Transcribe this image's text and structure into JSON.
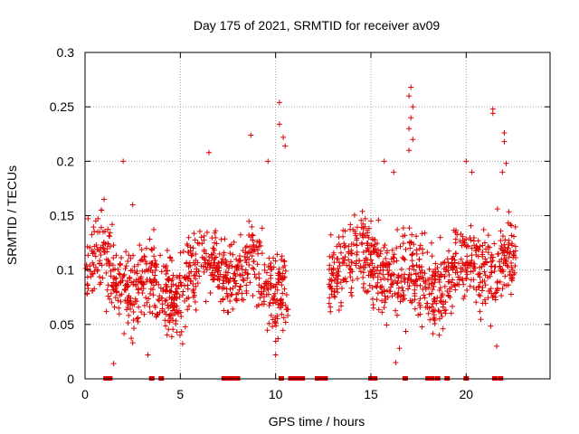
{
  "chart_data": {
    "type": "scatter",
    "title": "Day 175 of 2021, SRMTID for receiver av09",
    "xlabel": "GPS time / hours",
    "ylabel": "SRMTID / TECUs",
    "xlim": [
      0,
      24.4
    ],
    "ylim": [
      0,
      0.3
    ],
    "x_ticks": [
      0,
      5,
      10,
      15,
      20
    ],
    "x_tick_labels": [
      "0",
      "5",
      "10",
      "15",
      "20"
    ],
    "y_ticks": [
      0,
      0.05,
      0.1,
      0.15,
      0.2,
      0.25,
      0.3
    ],
    "y_tick_labels": [
      "0",
      "0.05",
      "0.1",
      "0.15",
      "0.2",
      "0.25",
      "0.3"
    ],
    "grid": true,
    "marker": "+",
    "color": "#e00000",
    "segments": [
      {
        "x_start": 0.0,
        "x_end": 10.7,
        "baseline": 0.095,
        "spread": 0.035,
        "count": 820
      },
      {
        "x_start": 12.8,
        "x_end": 22.6,
        "baseline": 0.098,
        "spread": 0.035,
        "count": 780
      }
    ],
    "highlights": [
      {
        "x": 1.0,
        "y": 0.165
      },
      {
        "x": 2.0,
        "y": 0.2
      },
      {
        "x": 2.5,
        "y": 0.16
      },
      {
        "x": 6.5,
        "y": 0.208
      },
      {
        "x": 8.7,
        "y": 0.224
      },
      {
        "x": 9.6,
        "y": 0.2
      },
      {
        "x": 10.2,
        "y": 0.254
      },
      {
        "x": 10.2,
        "y": 0.234
      },
      {
        "x": 10.4,
        "y": 0.222
      },
      {
        "x": 10.5,
        "y": 0.214
      },
      {
        "x": 15.7,
        "y": 0.2
      },
      {
        "x": 16.2,
        "y": 0.19
      },
      {
        "x": 17.0,
        "y": 0.26
      },
      {
        "x": 17.1,
        "y": 0.268
      },
      {
        "x": 17.2,
        "y": 0.25
      },
      {
        "x": 17.1,
        "y": 0.24
      },
      {
        "x": 17.0,
        "y": 0.23
      },
      {
        "x": 17.2,
        "y": 0.22
      },
      {
        "x": 17.0,
        "y": 0.21
      },
      {
        "x": 20.0,
        "y": 0.2
      },
      {
        "x": 20.3,
        "y": 0.19
      },
      {
        "x": 21.4,
        "y": 0.248
      },
      {
        "x": 21.4,
        "y": 0.244
      },
      {
        "x": 22.0,
        "y": 0.226
      },
      {
        "x": 22.0,
        "y": 0.218
      },
      {
        "x": 22.1,
        "y": 0.198
      },
      {
        "x": 21.9,
        "y": 0.19
      },
      {
        "x": 1.5,
        "y": 0.014
      },
      {
        "x": 16.3,
        "y": 0.015
      },
      {
        "x": 16.5,
        "y": 0.028
      },
      {
        "x": 10.0,
        "y": 0.022
      },
      {
        "x": 3.3,
        "y": 0.022
      },
      {
        "x": 21.6,
        "y": 0.03
      }
    ],
    "zero_markers_x": [
      1.1,
      1.2,
      1.3,
      3.5,
      4.0,
      7.3,
      7.5,
      7.6,
      7.8,
      8.0,
      10.3,
      10.8,
      11.0,
      11.2,
      11.4,
      12.2,
      12.4,
      12.6,
      15.0,
      15.1,
      15.2,
      16.8,
      18.0,
      18.2,
      18.5,
      19.0,
      20.0,
      21.5,
      21.8
    ]
  }
}
